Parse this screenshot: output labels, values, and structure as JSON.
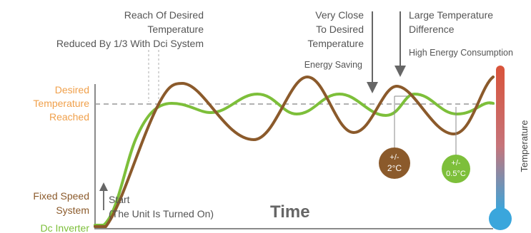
{
  "diagram": {
    "labels": {
      "reach_line1": "Reach Of Desired",
      "reach_line2": "Temperature",
      "reduced": "Reduced By 1/3 With Dci System",
      "very_close_line1": "Very Close",
      "very_close_line2": "To Desired",
      "very_close_line3": "Temperature",
      "energy_saving": "Energy Saving",
      "large_diff_line1": "Large Temperature",
      "large_diff_line2": "Difference",
      "high_energy": "High Energy Consumption",
      "desired_line1": "Desired",
      "desired_line2": "Temperature",
      "desired_line3": "Reached",
      "fixed_line1": "Fixed Speed",
      "fixed_line2": "System",
      "dc_inverter": "Dc Inverter",
      "start_line1": "Start",
      "start_line2": "(The Unit Is Turned On)",
      "time": "Time",
      "temperature_axis": "Temperature"
    },
    "badges": {
      "fixed_pm": "+/-",
      "fixed_value": "2°C",
      "inverter_pm": "+/-",
      "inverter_value": "0.5°C"
    },
    "colors": {
      "fixed_speed": "#8b5a2b",
      "dc_inverter": "#7dbf3a",
      "orange_label": "#f0a04b",
      "thermo_top": "#d9533a",
      "thermo_bottom": "#3aa6dc",
      "axis": "#8a8a8a",
      "dashed": "#999999"
    }
  }
}
